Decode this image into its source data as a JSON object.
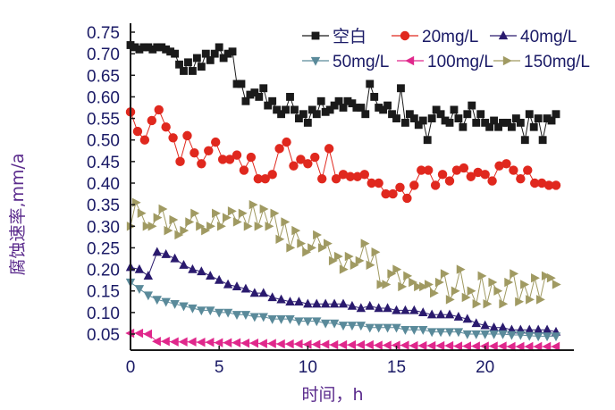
{
  "chart_data": {
    "type": "line",
    "title": "",
    "xlabel": "时间，h",
    "ylabel": "腐蚀速率,mm/a",
    "xlim": [
      0,
      24
    ],
    "ylim": [
      0.02,
      0.75
    ],
    "xticks": [
      0,
      5,
      10,
      15,
      20
    ],
    "yticks": [
      0.05,
      0.1,
      0.15,
      0.2,
      0.25,
      0.3,
      0.35,
      0.4,
      0.45,
      0.5,
      0.55,
      0.6,
      0.65,
      0.7,
      0.75
    ],
    "grid": false,
    "legend_position": "top-right",
    "series": [
      {
        "name": "空白",
        "color": "#1a1a1a",
        "marker": "square",
        "x": [
          0,
          0.25,
          0.5,
          0.75,
          1.0,
          1.25,
          1.5,
          1.75,
          2.0,
          2.25,
          2.5,
          2.75,
          3.0,
          3.25,
          3.5,
          3.75,
          4.0,
          4.25,
          4.5,
          4.75,
          5.0,
          5.25,
          5.5,
          5.75,
          6.0,
          6.25,
          6.5,
          6.75,
          7.0,
          7.25,
          7.5,
          7.75,
          8.0,
          8.25,
          8.5,
          8.75,
          9.0,
          9.25,
          9.5,
          9.75,
          10.0,
          10.25,
          10.5,
          10.75,
          11.0,
          11.25,
          11.5,
          11.75,
          12.0,
          12.25,
          12.5,
          12.75,
          13.0,
          13.25,
          13.5,
          13.75,
          14.0,
          14.25,
          14.5,
          14.75,
          15.0,
          15.25,
          15.5,
          15.75,
          16.0,
          16.25,
          16.5,
          16.75,
          17.0,
          17.25,
          17.5,
          17.75,
          18.0,
          18.25,
          18.5,
          18.75,
          19.0,
          19.25,
          19.5,
          19.75,
          20.0,
          20.25,
          20.5,
          20.75,
          21.0,
          21.25,
          21.5,
          21.75,
          22.0,
          22.25,
          22.5,
          22.75,
          23.0,
          23.25,
          23.5,
          23.75,
          24.0
        ],
        "values": [
          0.72,
          0.715,
          0.71,
          0.715,
          0.715,
          0.71,
          0.715,
          0.715,
          0.71,
          0.705,
          0.7,
          0.675,
          0.66,
          0.68,
          0.66,
          0.69,
          0.67,
          0.7,
          0.685,
          0.7,
          0.715,
          0.69,
          0.7,
          0.705,
          0.63,
          0.63,
          0.59,
          0.605,
          0.61,
          0.6,
          0.62,
          0.58,
          0.59,
          0.57,
          0.56,
          0.57,
          0.6,
          0.57,
          0.55,
          0.56,
          0.54,
          0.57,
          0.56,
          0.59,
          0.565,
          0.57,
          0.58,
          0.59,
          0.575,
          0.59,
          0.585,
          0.575,
          0.575,
          0.56,
          0.63,
          0.6,
          0.575,
          0.57,
          0.58,
          0.56,
          0.55,
          0.62,
          0.54,
          0.56,
          0.55,
          0.535,
          0.545,
          0.5,
          0.55,
          0.57,
          0.56,
          0.545,
          0.54,
          0.57,
          0.55,
          0.53,
          0.56,
          0.58,
          0.54,
          0.56,
          0.54,
          0.53,
          0.545,
          0.53,
          0.54,
          0.54,
          0.53,
          0.55,
          0.54,
          0.5,
          0.56,
          0.53,
          0.55,
          0.5,
          0.55,
          0.545,
          0.56
        ]
      },
      {
        "name": "20mg/L",
        "color": "#e0281e",
        "marker": "circle",
        "x": [
          0,
          0.4,
          0.8,
          1.2,
          1.6,
          2.0,
          2.4,
          2.8,
          3.2,
          3.6,
          4.0,
          4.4,
          4.8,
          5.2,
          5.6,
          6.0,
          6.4,
          6.8,
          7.2,
          7.6,
          8.0,
          8.4,
          8.8,
          9.2,
          9.6,
          10.0,
          10.4,
          10.8,
          11.2,
          11.6,
          12.0,
          12.4,
          12.8,
          13.2,
          13.6,
          14.0,
          14.4,
          14.8,
          15.2,
          15.6,
          16.0,
          16.4,
          16.8,
          17.2,
          17.6,
          18.0,
          18.4,
          18.8,
          19.2,
          19.6,
          20.0,
          20.4,
          20.8,
          21.2,
          21.6,
          22.0,
          22.4,
          22.8,
          23.2,
          23.6,
          24.0
        ],
        "values": [
          0.565,
          0.52,
          0.5,
          0.545,
          0.57,
          0.53,
          0.505,
          0.45,
          0.51,
          0.47,
          0.445,
          0.475,
          0.495,
          0.455,
          0.455,
          0.465,
          0.43,
          0.46,
          0.41,
          0.41,
          0.42,
          0.48,
          0.495,
          0.44,
          0.455,
          0.445,
          0.46,
          0.41,
          0.48,
          0.41,
          0.42,
          0.415,
          0.415,
          0.42,
          0.4,
          0.4,
          0.375,
          0.375,
          0.39,
          0.365,
          0.395,
          0.43,
          0.43,
          0.395,
          0.42,
          0.405,
          0.43,
          0.435,
          0.415,
          0.425,
          0.42,
          0.405,
          0.44,
          0.445,
          0.43,
          0.41,
          0.43,
          0.4,
          0.4,
          0.395,
          0.395
        ]
      },
      {
        "name": "40mg/L",
        "color": "#2a1a6e",
        "marker": "triangle-up",
        "x": [
          0,
          0.5,
          1.0,
          1.5,
          2.0,
          2.5,
          3.0,
          3.5,
          4.0,
          4.5,
          5.0,
          5.5,
          6.0,
          6.5,
          7.0,
          7.5,
          8.0,
          8.5,
          9.0,
          9.5,
          10.0,
          10.5,
          11.0,
          11.5,
          12.0,
          12.5,
          13.0,
          13.5,
          14.0,
          14.5,
          15.0,
          15.5,
          16.0,
          16.5,
          17.0,
          17.5,
          18.0,
          18.5,
          19.0,
          19.5,
          20.0,
          20.5,
          21.0,
          21.5,
          22.0,
          22.5,
          23.0,
          23.5,
          24.0
        ],
        "values": [
          0.205,
          0.2,
          0.185,
          0.24,
          0.235,
          0.225,
          0.21,
          0.2,
          0.195,
          0.185,
          0.175,
          0.165,
          0.16,
          0.155,
          0.145,
          0.145,
          0.135,
          0.13,
          0.125,
          0.125,
          0.12,
          0.12,
          0.12,
          0.12,
          0.12,
          0.115,
          0.11,
          0.115,
          0.11,
          0.11,
          0.105,
          0.105,
          0.105,
          0.1,
          0.095,
          0.095,
          0.095,
          0.09,
          0.085,
          0.075,
          0.07,
          0.065,
          0.065,
          0.06,
          0.06,
          0.06,
          0.06,
          0.06,
          0.055
        ]
      },
      {
        "name": "50mg/L",
        "color": "#5a8a9a",
        "marker": "triangle-down",
        "x": [
          0,
          0.5,
          1.0,
          1.5,
          2.0,
          2.5,
          3.0,
          3.5,
          4.0,
          4.5,
          5.0,
          5.5,
          6.0,
          6.5,
          7.0,
          7.5,
          8.0,
          8.5,
          9.0,
          9.5,
          10.0,
          10.5,
          11.0,
          11.5,
          12.0,
          12.5,
          13.0,
          13.5,
          14.0,
          14.5,
          15.0,
          15.5,
          16.0,
          16.5,
          17.0,
          17.5,
          18.0,
          18.5,
          19.0,
          19.5,
          20.0,
          20.5,
          21.0,
          21.5,
          22.0,
          22.5,
          23.0,
          23.5,
          24.0
        ],
        "values": [
          0.17,
          0.155,
          0.14,
          0.13,
          0.125,
          0.12,
          0.115,
          0.11,
          0.105,
          0.105,
          0.1,
          0.1,
          0.095,
          0.095,
          0.09,
          0.09,
          0.085,
          0.085,
          0.085,
          0.08,
          0.08,
          0.08,
          0.075,
          0.075,
          0.07,
          0.07,
          0.07,
          0.065,
          0.065,
          0.065,
          0.065,
          0.06,
          0.06,
          0.06,
          0.055,
          0.055,
          0.055,
          0.055,
          0.05,
          0.05,
          0.05,
          0.05,
          0.05,
          0.048,
          0.048,
          0.046,
          0.045,
          0.045,
          0.045
        ]
      },
      {
        "name": "100mg/L",
        "color": "#e0288c",
        "marker": "triangle-left",
        "x": [
          0,
          0.5,
          1.0,
          1.5,
          2.0,
          2.5,
          3.0,
          3.5,
          4.0,
          4.5,
          5.0,
          5.5,
          6.0,
          6.5,
          7.0,
          7.5,
          8.0,
          8.5,
          9.0,
          9.5,
          10.0,
          10.5,
          11.0,
          11.5,
          12.0,
          12.5,
          13.0,
          13.5,
          14.0,
          14.5,
          15.0,
          15.5,
          16.0,
          16.5,
          17.0,
          17.5,
          18.0,
          18.5,
          19.0,
          19.5,
          20.0,
          20.5,
          21.0,
          21.5,
          22.0,
          22.5,
          23.0,
          23.5,
          24.0
        ],
        "values": [
          0.052,
          0.052,
          0.05,
          0.033,
          0.033,
          0.032,
          0.032,
          0.032,
          0.031,
          0.031,
          0.03,
          0.03,
          0.03,
          0.029,
          0.029,
          0.028,
          0.028,
          0.027,
          0.027,
          0.027,
          0.026,
          0.026,
          0.026,
          0.025,
          0.025,
          0.025,
          0.025,
          0.025,
          0.024,
          0.024,
          0.024,
          0.024,
          0.023,
          0.023,
          0.023,
          0.023,
          0.023,
          0.022,
          0.022,
          0.022,
          0.022,
          0.022,
          0.022,
          0.021,
          0.021,
          0.021,
          0.021,
          0.021,
          0.021
        ]
      },
      {
        "name": "150mg/L",
        "color": "#a09a62",
        "marker": "triangle-right",
        "x": [
          0,
          0.3,
          0.6,
          0.9,
          1.2,
          1.5,
          1.8,
          2.1,
          2.4,
          2.7,
          3.0,
          3.3,
          3.6,
          3.9,
          4.2,
          4.5,
          4.8,
          5.1,
          5.4,
          5.7,
          6.0,
          6.3,
          6.6,
          6.9,
          7.2,
          7.5,
          7.8,
          8.1,
          8.4,
          8.7,
          9.0,
          9.3,
          9.6,
          9.9,
          10.2,
          10.5,
          10.8,
          11.1,
          11.4,
          11.7,
          12.0,
          12.3,
          12.6,
          12.9,
          13.2,
          13.5,
          13.8,
          14.1,
          14.4,
          14.7,
          15.0,
          15.3,
          15.6,
          15.9,
          16.2,
          16.5,
          16.8,
          17.1,
          17.4,
          17.7,
          18.0,
          18.3,
          18.6,
          18.9,
          19.2,
          19.5,
          19.8,
          20.1,
          20.4,
          20.7,
          21.0,
          21.3,
          21.6,
          21.9,
          22.2,
          22.5,
          22.8,
          23.1,
          23.4,
          23.7,
          24.0
        ],
        "values": [
          0.3,
          0.355,
          0.33,
          0.3,
          0.3,
          0.32,
          0.34,
          0.29,
          0.315,
          0.28,
          0.29,
          0.31,
          0.33,
          0.3,
          0.29,
          0.3,
          0.33,
          0.3,
          0.32,
          0.335,
          0.31,
          0.33,
          0.3,
          0.35,
          0.3,
          0.34,
          0.3,
          0.33,
          0.27,
          0.31,
          0.25,
          0.29,
          0.26,
          0.24,
          0.25,
          0.28,
          0.25,
          0.26,
          0.22,
          0.23,
          0.2,
          0.23,
          0.21,
          0.22,
          0.26,
          0.21,
          0.24,
          0.165,
          0.165,
          0.19,
          0.2,
          0.16,
          0.185,
          0.17,
          0.16,
          0.16,
          0.165,
          0.145,
          0.17,
          0.19,
          0.13,
          0.15,
          0.2,
          0.135,
          0.15,
          0.12,
          0.185,
          0.12,
          0.17,
          0.15,
          0.12,
          0.17,
          0.19,
          0.125,
          0.165,
          0.13,
          0.18,
          0.13,
          0.185,
          0.18,
          0.165
        ]
      }
    ]
  }
}
